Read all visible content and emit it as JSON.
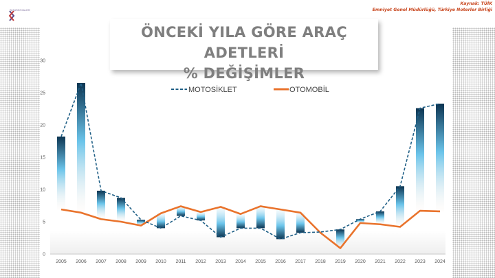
{
  "header": {
    "logo_text": "TASARIM KALEM",
    "source_line1": "Kaynak: TÜİK",
    "source_line2": "Emniyet Genel Müdürlüğü, Türkiye Noterler Birliği"
  },
  "title_line1": "ÖNCEKİ YILA GÖRE ARAÇ ADETLERİ",
  "title_line2": "% DEĞİŞİMLER",
  "colors": {
    "motosiklet": "#1f5f86",
    "otomobil": "#e9732c",
    "bar_dark": "#0d3552",
    "bar_light": "#6bc4ea"
  },
  "chart_data": {
    "type": "line",
    "categories": [
      "2005",
      "2006",
      "2007",
      "2008",
      "2009",
      "2010",
      "2011",
      "2012",
      "2013",
      "2014",
      "2015",
      "2016",
      "2017",
      "2018",
      "2019",
      "2020",
      "2021",
      "2022",
      "2023",
      "2024"
    ],
    "series": [
      {
        "name": "MOTOSİKLET",
        "style": "dashed",
        "values": [
          18.2,
          26.5,
          9.8,
          8.7,
          5.3,
          4.0,
          5.9,
          5.2,
          2.6,
          4.0,
          4.0,
          2.3,
          3.3,
          3.4,
          3.8,
          5.4,
          6.6,
          10.5,
          22.6,
          23.3
        ]
      },
      {
        "name": "OTOMOBİL",
        "style": "solid",
        "values": [
          6.9,
          6.4,
          5.4,
          5.0,
          4.4,
          6.3,
          7.4,
          6.5,
          7.3,
          6.2,
          7.4,
          6.9,
          6.4,
          3.3,
          0.9,
          4.8,
          4.6,
          4.2,
          6.7,
          6.6
        ]
      }
    ],
    "ylim": [
      0,
      30
    ],
    "yticks": [
      0,
      5,
      10,
      15,
      20,
      25,
      30
    ],
    "legend_position": "top-center",
    "grid": false
  }
}
